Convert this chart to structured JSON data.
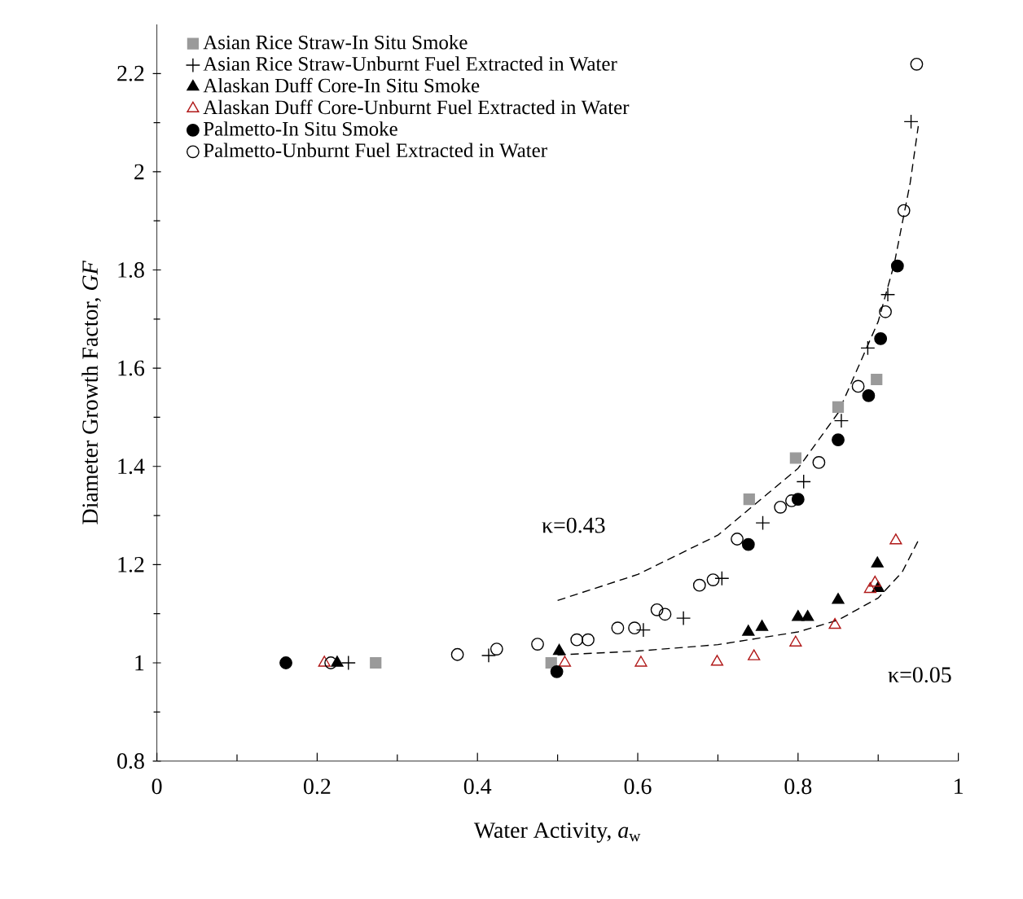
{
  "chart_data": {
    "type": "scatter",
    "xlabel": "Water Activity, *a*$_{w}$",
    "ylabel": "Diameter Growth Factor, *GF*",
    "xlim": [
      0,
      1
    ],
    "ylim": [
      0.8,
      2.3
    ],
    "xticks": [
      0,
      0.2,
      0.4,
      0.6,
      0.8,
      1
    ],
    "yticks": [
      0.8,
      1,
      1.2,
      1.4,
      1.6,
      1.8,
      2,
      2.2
    ],
    "legend": "top left",
    "series": [
      {
        "name": "Asian Rice Straw-In Situ Smoke",
        "color": "#9a9a9a",
        "marker": "square",
        "x": [
          0.273,
          0.492,
          0.739,
          0.797,
          0.85,
          0.898
        ],
        "values": [
          1.0,
          1.0,
          1.333,
          1.417,
          1.521,
          1.577
        ]
      },
      {
        "name": "Asian Rice Straw-Unburnt Fuel Extracted in Water",
        "color": "#000000",
        "marker": "cross",
        "x": [
          0.239,
          0.414,
          0.607,
          0.657,
          0.705,
          0.756,
          0.807,
          0.854,
          0.887,
          0.912,
          0.941
        ],
        "values": [
          1.0,
          1.015,
          1.067,
          1.091,
          1.172,
          1.285,
          1.369,
          1.493,
          1.641,
          1.75,
          2.102
        ]
      },
      {
        "name": "Alaskan Duff Core-In Situ Smoke",
        "color": "#000000",
        "marker": "triangle",
        "x": [
          0.225,
          0.502,
          0.738,
          0.755,
          0.8,
          0.812,
          0.85,
          0.9,
          0.899
        ],
        "values": [
          1.0,
          1.024,
          1.063,
          1.073,
          1.093,
          1.093,
          1.128,
          1.152,
          1.202
        ]
      },
      {
        "name": "Alaskan Duff Core-Unburnt Fuel Extracted in Water",
        "color": "#b01818",
        "marker": "triangle",
        "x": [
          0.209,
          0.509,
          0.604,
          0.699,
          0.745,
          0.797,
          0.846,
          0.89,
          0.896,
          0.922
        ],
        "values": [
          1.0,
          1.0,
          1.0,
          1.002,
          1.013,
          1.041,
          1.077,
          1.15,
          1.163,
          1.249
        ]
      },
      {
        "name": "Palmetto-In Situ Smoke",
        "color": "#000000",
        "marker": "circle",
        "x": [
          0.161,
          0.499,
          0.738,
          0.8,
          0.85,
          0.888,
          0.903,
          0.924
        ],
        "values": [
          1.0,
          0.982,
          1.241,
          1.333,
          1.454,
          1.544,
          1.66,
          1.808
        ]
      },
      {
        "name": "Palmetto-Unburnt Fuel Extracted in Water",
        "color": "#000000",
        "marker": "circle",
        "x": [
          0.217,
          0.375,
          0.424,
          0.475,
          0.524,
          0.538,
          0.575,
          0.596,
          0.624,
          0.634,
          0.677,
          0.694,
          0.724,
          0.778,
          0.792,
          0.826,
          0.875,
          0.909,
          0.932,
          0.948
        ],
        "values": [
          1.0,
          1.017,
          1.028,
          1.038,
          1.047,
          1.047,
          1.071,
          1.071,
          1.108,
          1.099,
          1.158,
          1.169,
          1.252,
          1.317,
          1.33,
          1.408,
          1.563,
          1.715,
          1.921,
          2.219
        ]
      },
      {
        "type": "line",
        "color": "#000000",
        "marker": "none",
        "line_style": "dashed",
        "x": [
          0.5,
          0.6,
          0.7,
          0.8,
          0.85,
          0.9,
          0.92,
          0.94,
          0.95
        ],
        "values": [
          1.127,
          1.18,
          1.26,
          1.396,
          1.509,
          1.695,
          1.812,
          1.978,
          2.093
        ]
      },
      {
        "type": "line",
        "color": "#000000",
        "marker": "none",
        "line_style": "dashed",
        "x": [
          0.5,
          0.6,
          0.7,
          0.8,
          0.85,
          0.9,
          0.93,
          0.95
        ],
        "values": [
          1.016,
          1.024,
          1.037,
          1.063,
          1.087,
          1.132,
          1.185,
          1.249
        ]
      }
    ],
    "annotations": [
      "κ=0.43",
      "κ=0.05"
    ]
  }
}
